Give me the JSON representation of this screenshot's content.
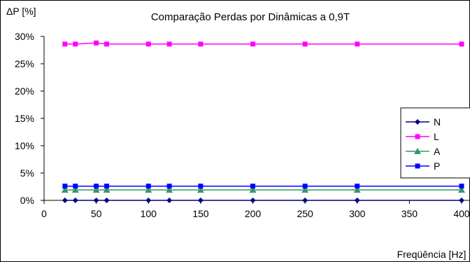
{
  "chart_data": {
    "type": "line",
    "title": "Comparação Perdas por Dinâmicas a 0,9T",
    "ylabel": "ΔP [%]",
    "xlabel": "Freqüência [Hz]",
    "x": [
      20,
      30,
      50,
      60,
      100,
      120,
      150,
      200,
      250,
      300,
      400
    ],
    "xlim": [
      0,
      400
    ],
    "ylim": [
      0,
      30
    ],
    "x_ticks": [
      "0",
      "50",
      "100",
      "150",
      "200",
      "250",
      "300",
      "350",
      "400"
    ],
    "y_ticks": [
      "0%",
      "5%",
      "10%",
      "15%",
      "20%",
      "25%",
      "30%"
    ],
    "grid": false,
    "legend_position": "right",
    "series": [
      {
        "name": "N",
        "color": "#000080",
        "marker": "diamond",
        "values": [
          0,
          0,
          0,
          0,
          0,
          0,
          0,
          0,
          0,
          0,
          0
        ]
      },
      {
        "name": "L",
        "color": "#ff00ff",
        "marker": "square",
        "values": [
          28.6,
          28.6,
          28.8,
          28.6,
          28.6,
          28.6,
          28.6,
          28.6,
          28.6,
          28.6,
          28.6
        ]
      },
      {
        "name": "A",
        "color": "#339966",
        "marker": "triangle",
        "values": [
          1.9,
          1.9,
          1.9,
          1.9,
          1.9,
          1.9,
          1.9,
          1.9,
          1.9,
          1.9,
          1.9
        ]
      },
      {
        "name": "P",
        "color": "#0000ff",
        "marker": "square",
        "values": [
          2.6,
          2.6,
          2.6,
          2.6,
          2.6,
          2.6,
          2.6,
          2.6,
          2.6,
          2.6,
          2.6
        ]
      }
    ]
  }
}
